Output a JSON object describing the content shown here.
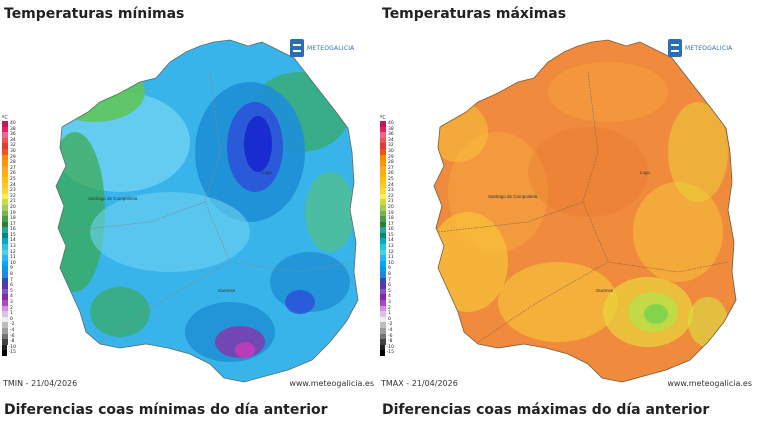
{
  "panels": [
    {
      "title": "Temperaturas mínimas",
      "footer_left": "TMIN - 21/04/2026",
      "footer_right": "www.meteogalicia.es",
      "subtitle": "Diferencias coas mínimas do día anterior",
      "place_labels": [
        "Santiago de Compostela",
        "Lugo",
        "Ourense"
      ],
      "palette": [
        "#1e8fd6",
        "#38b4ea",
        "#6fd2f2",
        "#2b55d9",
        "#1a2bd0",
        "#39a94a",
        "#5ec65a",
        "#7a3fae",
        "#c23bb8"
      ]
    },
    {
      "title": "Temperaturas máximas",
      "footer_left": "TMAX - 21/04/2026",
      "footer_right": "www.meteogalicia.es",
      "subtitle": "Diferencias coas máximas do día anterior",
      "place_labels": [
        "Santiago de Compostela",
        "Lugo",
        "Ourense"
      ],
      "palette": [
        "#f08a3c",
        "#f5a13f",
        "#f7c03a",
        "#e8d63a",
        "#d9e33f",
        "#b9e04a",
        "#7dd44e",
        "#e4752f"
      ]
    }
  ],
  "logo_text": "METEOGALICIA",
  "legend": {
    "unit": "ºC",
    "labels": [
      "40",
      "38",
      "36",
      "34",
      "32",
      "30",
      "29",
      "28",
      "27",
      "26",
      "25",
      "24",
      "23",
      "22",
      "21",
      "20",
      "19",
      "18",
      "17",
      "16",
      "15",
      "14",
      "13",
      "12",
      "11",
      "10",
      "9",
      "8",
      "7",
      "6",
      "5",
      "4",
      "3",
      "2",
      "1",
      "0",
      "-2",
      "-4",
      "-6",
      "-8",
      "-10",
      "-15"
    ],
    "colors": [
      "#c2185b",
      "#e91e63",
      "#f06292",
      "#ef5350",
      "#e53935",
      "#f4511e",
      "#fb8c00",
      "#ff9800",
      "#ffa726",
      "#ffb300",
      "#ffc107",
      "#ffca28",
      "#fdd835",
      "#ffee58",
      "#cddc39",
      "#9ccc65",
      "#7cb342",
      "#43a047",
      "#2e7d32",
      "#26a69a",
      "#00897b",
      "#00acc1",
      "#26c6da",
      "#4dd0e1",
      "#29b6f6",
      "#03a9f4",
      "#039be5",
      "#1e88e5",
      "#3949ab",
      "#5e35b1",
      "#7e57c2",
      "#8e24aa",
      "#ab47bc",
      "#ce93d8",
      "#e1bee7",
      "#eeeeee",
      "#bdbdbd",
      "#9e9e9e",
      "#757575",
      "#424242",
      "#212121",
      "#000000"
    ]
  }
}
